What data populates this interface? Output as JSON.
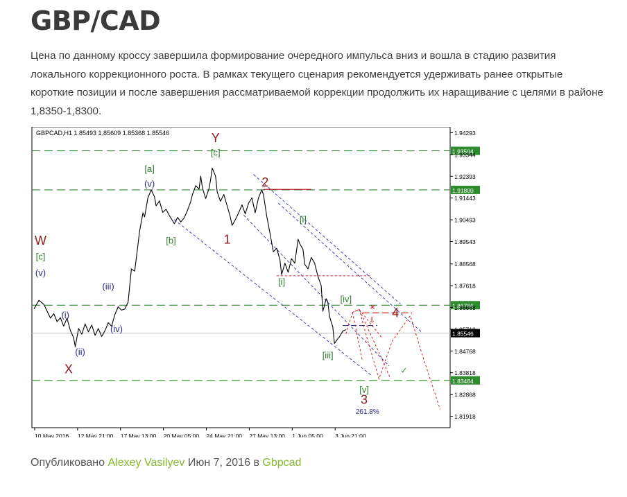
{
  "post": {
    "title": "GBP/CAD",
    "description": "Цена по данному кроссу завершила формирование очередного импульса вниз и вошла в стадию развития локального коррекционного роста. В рамках текущего сценария рекомендуется удерживать ранее открытые короткие позиции и после завершения рассматриваемой коррекции  продолжить их наращивание с целями в районе 1,8350-1,8300."
  },
  "footer": {
    "prefix": "Опубликовано",
    "author": "Alexey Vasilyev",
    "date": "Июн 7, 2016",
    "in_word": "в",
    "category": "Gbpcad"
  },
  "chart_data": {
    "type": "line",
    "header": "GBPCAD,H1  1.85493 1.85609 1.85368 1.85546",
    "ylim": [
      1.8142,
      1.9455
    ],
    "y_ticks": [
      "1.94293",
      "1.93344",
      "1.92393",
      "1.91443",
      "1.90493",
      "1.89543",
      "1.88568",
      "1.87618",
      "1.86668",
      "1.85718",
      "1.84768",
      "1.83818",
      "1.82868",
      "1.81918"
    ],
    "x_ticks": [
      "10 May 2016",
      "12 May 21:00",
      "17 May 13:00",
      "20 May 05:00",
      "24 May 21:00",
      "27 May 13:00",
      "1 Jun 05:00",
      "3 Jun 21:00"
    ],
    "levels": [
      {
        "value": 1.93504,
        "label": "1.93504"
      },
      {
        "value": 1.918,
        "label": "1.91800"
      },
      {
        "value": 1.86766,
        "label": "1.86766"
      },
      {
        "value": 1.83484,
        "label": "1.83484"
      }
    ],
    "current_price": {
      "value": 1.85546,
      "label": "1.85546"
    },
    "price_path": [
      [
        0,
        1.866
      ],
      [
        3,
        1.8698
      ],
      [
        6,
        1.868
      ],
      [
        8,
        1.865
      ],
      [
        10,
        1.862
      ],
      [
        12,
        1.864
      ],
      [
        14,
        1.8605
      ],
      [
        16,
        1.8622
      ],
      [
        18,
        1.8585
      ],
      [
        20,
        1.862
      ],
      [
        22,
        1.8567
      ],
      [
        24,
        1.8535
      ],
      [
        25,
        1.8495
      ],
      [
        27,
        1.8575
      ],
      [
        29,
        1.855
      ],
      [
        31,
        1.8595
      ],
      [
        33,
        1.856
      ],
      [
        35,
        1.859
      ],
      [
        37,
        1.8545
      ],
      [
        39,
        1.8575
      ],
      [
        41,
        1.854
      ],
      [
        43,
        1.8565
      ],
      [
        45,
        1.86
      ],
      [
        47,
        1.8585
      ],
      [
        49,
        1.8635
      ],
      [
        51,
        1.867
      ],
      [
        53,
        1.8655
      ],
      [
        55,
        1.866
      ],
      [
        57,
        1.869
      ],
      [
        59,
        1.8835
      ],
      [
        61,
        1.8825
      ],
      [
        63,
        1.894
      ],
      [
        64,
        1.9
      ],
      [
        66,
        1.908
      ],
      [
        67,
        1.9062
      ],
      [
        69,
        1.9145
      ],
      [
        71,
        1.918
      ],
      [
        73,
        1.915
      ],
      [
        74,
        1.911
      ],
      [
        76,
        1.9132
      ],
      [
        78,
        1.9082
      ],
      [
        80,
        1.9095
      ],
      [
        82,
        1.9068
      ],
      [
        84,
        1.9045
      ],
      [
        85,
        1.9032
      ],
      [
        87,
        1.906
      ],
      [
        89,
        1.904
      ],
      [
        91,
        1.9058
      ],
      [
        93,
        1.909
      ],
      [
        95,
        1.913
      ],
      [
        96,
        1.916
      ],
      [
        98,
        1.9198
      ],
      [
        100,
        1.9183
      ],
      [
        101,
        1.924
      ],
      [
        102,
        1.919
      ],
      [
        104,
        1.9142
      ],
      [
        106,
        1.9185
      ],
      [
        107,
        1.9225
      ],
      [
        108,
        1.9275
      ],
      [
        110,
        1.924
      ],
      [
        111,
        1.917
      ],
      [
        113,
        1.913
      ],
      [
        115,
        1.916
      ],
      [
        117,
        1.911
      ],
      [
        119,
        1.906
      ],
      [
        120,
        1.9025
      ],
      [
        122,
        1.905
      ],
      [
        124,
        1.908
      ],
      [
        126,
        1.9115
      ],
      [
        128,
        1.9075
      ],
      [
        130,
        1.9122
      ],
      [
        132,
        1.9145
      ],
      [
        134,
        1.908
      ],
      [
        136,
        1.9145
      ],
      [
        138,
        1.918
      ],
      [
        139,
        1.916
      ],
      [
        141,
        1.9065
      ],
      [
        143,
        1.899
      ],
      [
        145,
        1.891
      ],
      [
        147,
        1.8925
      ],
      [
        149,
        1.8875
      ],
      [
        150,
        1.881
      ],
      [
        152,
        1.886
      ],
      [
        154,
        1.882
      ],
      [
        156,
        1.888
      ],
      [
        158,
        1.886
      ],
      [
        160,
        1.8965
      ],
      [
        161,
        1.8945
      ],
      [
        163,
        1.892
      ],
      [
        164,
        1.8855
      ],
      [
        166,
        1.8835
      ],
      [
        168,
        1.8885
      ],
      [
        170,
        1.886
      ],
      [
        172,
        1.8802
      ],
      [
        174,
        1.8762
      ],
      [
        175,
        1.865
      ],
      [
        177,
        1.8705
      ],
      [
        178,
        1.8692
      ],
      [
        179,
        1.8628
      ],
      [
        181,
        1.8582
      ],
      [
        182,
        1.851
      ],
      [
        184,
        1.853
      ],
      [
        185,
        1.8538
      ],
      [
        187,
        1.8563
      ],
      [
        189,
        1.857
      ]
    ],
    "forecast_paths": [
      [
        [
          189,
          1.8552
        ],
        [
          193,
          1.8645
        ],
        [
          197,
          1.8658
        ],
        [
          201,
          1.8552
        ],
        [
          209,
          1.8355
        ],
        [
          217,
          1.852
        ],
        [
          228,
          1.863
        ],
        [
          236,
          1.8442
        ],
        [
          246,
          1.8223
        ]
      ],
      [
        [
          193,
          1.8645
        ],
        [
          197,
          1.8658
        ],
        [
          212,
          1.8422
        ],
        [
          216,
          1.8355
        ]
      ],
      [
        [
          193,
          1.8645
        ],
        [
          199,
          1.8432
        ]
      ],
      [
        [
          197,
          1.8658
        ],
        [
          211,
          1.8532
        ]
      ]
    ],
    "channels": [
      [
        [
          133,
          1.9247
        ],
        [
          222,
          1.8682
        ]
      ],
      [
        [
          127,
          1.907
        ],
        [
          215,
          1.8412
        ]
      ],
      [
        [
          85,
          1.905
        ],
        [
          205,
          1.8367
        ]
      ],
      [
        [
          148,
          1.9122
        ],
        [
          235,
          1.8558
        ]
      ]
    ],
    "wave_labels": [
      {
        "text": "Y",
        "x": 110,
        "y": 1.9388,
        "color": "#8b1a1a",
        "size": 18
      },
      {
        "text": "[c]",
        "x": 110,
        "y": 1.933,
        "color": "#2e7d2e",
        "size": 13
      },
      {
        "text": "W",
        "x": 4,
        "y": 1.894,
        "color": "#8b1a1a",
        "size": 18
      },
      {
        "text": "[c]",
        "x": 4,
        "y": 1.8875,
        "color": "#2e7d2e",
        "size": 13
      },
      {
        "text": "(v)",
        "x": 4,
        "y": 1.8805,
        "color": "#2a2a8a",
        "size": 13
      },
      {
        "text": "[a]",
        "x": 70,
        "y": 1.9258,
        "color": "#2e7d2e",
        "size": 13
      },
      {
        "text": "(v)",
        "x": 70,
        "y": 1.9193,
        "color": "#2a2a8a",
        "size": 13
      },
      {
        "text": "[b]",
        "x": 83,
        "y": 1.8945,
        "color": "#2e7d2e",
        "size": 13
      },
      {
        "text": "1",
        "x": 117,
        "y": 1.8945,
        "color": "#8b1a1a",
        "size": 18
      },
      {
        "text": "2",
        "x": 140,
        "y": 1.9195,
        "color": "#8b1a1a",
        "size": 18
      },
      {
        "text": "[i]",
        "x": 163,
        "y": 1.9037,
        "color": "#2e7d2e",
        "size": 13
      },
      {
        "text": "[i]",
        "x": 150,
        "y": 1.8765,
        "color": "#2e7d2e",
        "size": 13
      },
      {
        "text": "[iv]",
        "x": 189,
        "y": 1.869,
        "color": "#2e7d2e",
        "size": 13
      },
      {
        "text": "4",
        "x": 219,
        "y": 1.8625,
        "color": "#8b1a1a",
        "size": 18
      },
      {
        "text": "[iii]",
        "x": 178,
        "y": 1.8445,
        "color": "#2e7d2e",
        "size": 13
      },
      {
        "text": "[v]",
        "x": 200,
        "y": 1.8295,
        "color": "#2e7d2e",
        "size": 13
      },
      {
        "text": "3",
        "x": 200,
        "y": 1.8247,
        "color": "#8b1a1a",
        "size": 18
      },
      {
        "text": "261.8%",
        "x": 202,
        "y": 1.8202,
        "color": "#2a2a8a",
        "size": 10
      },
      {
        "text": "(i)",
        "x": 19,
        "y": 1.862,
        "color": "#2a2a8a",
        "size": 13
      },
      {
        "text": "(ii)",
        "x": 28,
        "y": 1.846,
        "color": "#2a2a8a",
        "size": 13
      },
      {
        "text": "(iii)",
        "x": 45,
        "y": 1.8745,
        "color": "#2a2a8a",
        "size": 13
      },
      {
        "text": "(iv)",
        "x": 50,
        "y": 1.856,
        "color": "#2a2a8a",
        "size": 13
      },
      {
        "text": "X",
        "x": 21,
        "y": 1.838,
        "color": "#8b1a1a",
        "size": 18
      }
    ]
  }
}
